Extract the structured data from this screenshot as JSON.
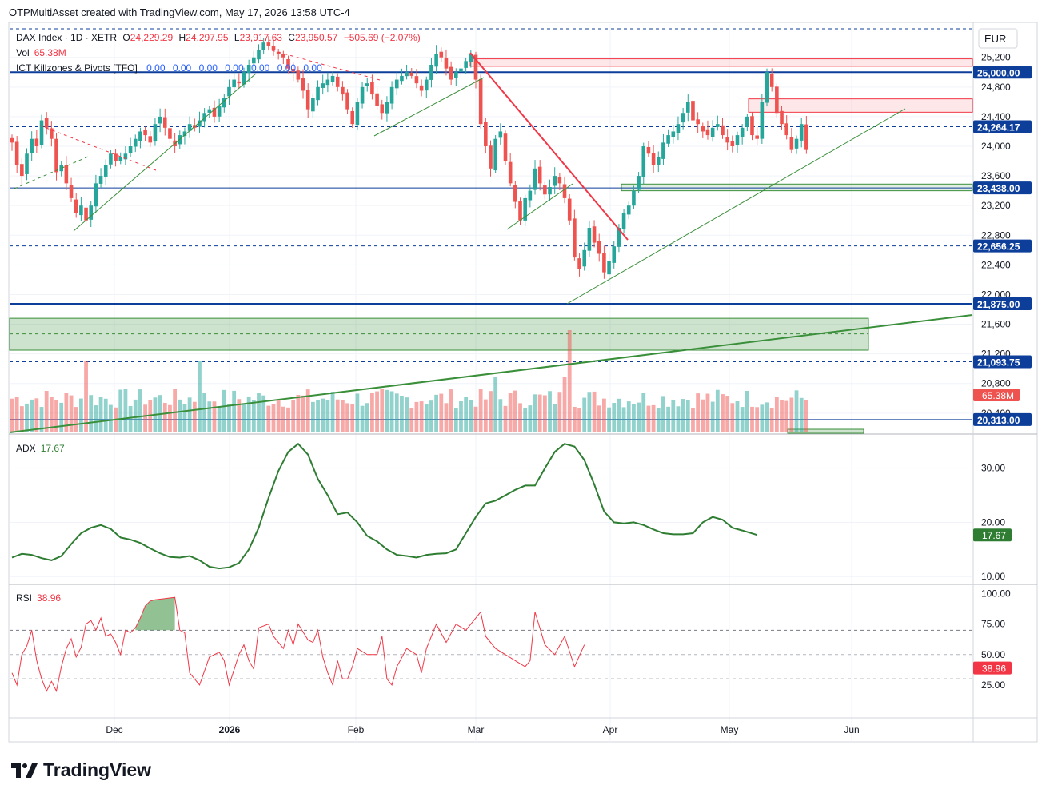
{
  "header": {
    "credit": "OTPMultiAsset created with TradingView.com, May 17, 2026 13:58 UTC-4"
  },
  "brand": {
    "name": "TradingView"
  },
  "currency": "EUR",
  "legend": {
    "symbol": "DAX Index · 1D · XETR",
    "o_label": "O",
    "o": "24,229.29",
    "h_label": "H",
    "h": "24,297.95",
    "l_label": "L",
    "l": "23,917.63",
    "c_label": "C",
    "c": "23,950.57",
    "change": "−505.69 (−2.07%)",
    "vol_label": "Vol",
    "vol": "65.38M",
    "ict_label": "ICT Killzones & Pivots [TFO]",
    "ict_values": [
      "0.00",
      "0.00",
      "0.00",
      "0.00",
      "0.00",
      "0.00",
      "0.00"
    ],
    "adx_label": "ADX",
    "adx": "17.67",
    "rsi_label": "RSI",
    "rsi": "38.96"
  },
  "colors": {
    "up": "#26a69a",
    "down": "#ef5350",
    "blue": "#0d3f9a",
    "green": "#3a8f3a",
    "adx": "#2e7d32",
    "rsi": "#f23645",
    "text": "#131722"
  },
  "chart_data": [
    {
      "type": "candlestick",
      "title": "DAX Index · 1D · XETR",
      "y_range": [
        20150,
        25650
      ],
      "y_ticks": [
        20400,
        20800,
        21200,
        21600,
        22000,
        22400,
        22800,
        23200,
        23600,
        24000,
        24400,
        24800,
        25200
      ],
      "x_ticks": [
        "Dec",
        "2026",
        "Feb",
        "Mar",
        "Apr",
        "May",
        "Jun"
      ],
      "price_labels": [
        {
          "value": 25000.0,
          "text": "25,000.00",
          "style": "blue"
        },
        {
          "value": 24264.17,
          "text": "24,264.17",
          "style": "blue"
        },
        {
          "value": 23438.0,
          "text": "23,438.00",
          "style": "blue"
        },
        {
          "value": 22656.25,
          "text": "22,656.25",
          "style": "blue"
        },
        {
          "value": 21875.0,
          "text": "21,875.00",
          "style": "blue"
        },
        {
          "value": 21093.75,
          "text": "21,093.75",
          "style": "blue"
        },
        {
          "value": 20313.0,
          "text": "20,313.00",
          "style": "blue"
        }
      ],
      "volume_label": "65.38M",
      "closes": [
        24050,
        23750,
        23600,
        23900,
        24100,
        24000,
        24350,
        24250,
        24100,
        23650,
        23750,
        23500,
        23300,
        23100,
        23200,
        23000,
        23200,
        23500,
        23600,
        23750,
        23900,
        23800,
        23850,
        23900,
        24000,
        24100,
        24200,
        24150,
        24050,
        24300,
        24400,
        24250,
        24100,
        24000,
        24150,
        24200,
        24300,
        24250,
        24350,
        24450,
        24500,
        24400,
        24550,
        24650,
        24800,
        24900,
        24850,
        25000,
        25100,
        25200,
        25300,
        25400,
        25350,
        25300,
        25250,
        25200,
        25050,
        25000,
        24900,
        24750,
        24500,
        24650,
        24800,
        24850,
        24900,
        24950,
        24800,
        24700,
        24500,
        24300,
        24600,
        24800,
        24850,
        24700,
        24550,
        24450,
        24600,
        24800,
        24900,
        24950,
        25000,
        24950,
        24850,
        24750,
        24900,
        25100,
        25250,
        25200,
        25050,
        24900,
        25000,
        25050,
        25150,
        25250,
        24900,
        24300,
        24000,
        23700,
        24100,
        24200,
        23800,
        23500,
        23250,
        23000,
        23300,
        23400,
        23700,
        23500,
        23350,
        23450,
        23600,
        23500,
        23300,
        23000,
        22500,
        22350,
        22600,
        22900,
        22700,
        22550,
        22300,
        22450,
        22650,
        22900,
        23100,
        23200,
        23400,
        23600,
        24000,
        23900,
        23750,
        23850,
        24050,
        24150,
        24200,
        24300,
        24450,
        24600,
        24350,
        24300,
        24200,
        24150,
        24250,
        24300,
        24150,
        24050,
        24000,
        24150,
        24250,
        24400,
        24150,
        24100,
        24600,
        25000,
        24800,
        24450,
        24300,
        24150,
        23950,
        24100,
        24300,
        23950
      ]
    },
    {
      "type": "line",
      "title": "ADX",
      "y_range": [
        9,
        36
      ],
      "y_ticks": [
        10,
        20,
        30
      ],
      "last": 17.67,
      "values": [
        13.5,
        14.2,
        14.0,
        13.4,
        13.0,
        13.8,
        16.0,
        18.0,
        19.0,
        19.5,
        18.8,
        17.2,
        16.8,
        16.2,
        15.2,
        14.3,
        13.6,
        13.5,
        13.8,
        13.0,
        11.8,
        11.5,
        11.7,
        12.5,
        15.0,
        19.0,
        24.5,
        29.5,
        33.0,
        34.5,
        32.5,
        28.0,
        25.0,
        21.5,
        21.8,
        20.0,
        17.5,
        16.5,
        15.0,
        14.0,
        13.8,
        13.5,
        14.0,
        14.2,
        14.3,
        15.0,
        18.0,
        21.0,
        23.5,
        24.0,
        25.0,
        26.0,
        26.8,
        26.8,
        30.0,
        33.0,
        34.5,
        34.0,
        31.5,
        27.0,
        22.0,
        20.0,
        19.8,
        20.0,
        19.5,
        18.7,
        18.0,
        17.8,
        17.8,
        18.0,
        20.0,
        21.0,
        20.5,
        19.0,
        18.5,
        17.67
      ],
      "x": [
        0,
        2,
        4,
        6,
        8,
        10,
        12,
        14,
        16,
        18,
        20,
        22,
        24,
        26,
        28,
        30,
        32,
        34,
        36,
        38,
        40,
        42,
        44,
        46,
        48,
        50,
        52,
        54,
        56,
        58,
        60,
        62,
        64,
        66,
        68,
        70,
        72,
        74,
        76,
        78,
        80,
        82,
        84,
        86,
        88,
        90,
        92,
        94,
        96,
        98,
        100,
        102,
        104,
        106,
        108,
        110,
        112,
        114,
        116,
        118,
        120,
        122,
        124,
        126,
        128,
        130,
        132,
        134,
        136,
        138,
        140,
        142,
        144,
        146,
        148,
        151
      ]
    },
    {
      "type": "line",
      "title": "RSI",
      "y_range": [
        0,
        105
      ],
      "y_ticks": [
        25,
        50,
        75,
        100
      ],
      "levels": [
        30,
        70
      ],
      "last": 38.96,
      "values": [
        35,
        25,
        50,
        57,
        70,
        45,
        30,
        20,
        28,
        20,
        40,
        55,
        63,
        48,
        56,
        75,
        78,
        70,
        80,
        65,
        67,
        60,
        50,
        70,
        68,
        72,
        80,
        90,
        94,
        95,
        96,
        97,
        70,
        68,
        35,
        25,
        48,
        50,
        52,
        45,
        25,
        50,
        58,
        45,
        38,
        72,
        75,
        65,
        60,
        55,
        70,
        58,
        75,
        62,
        60,
        70,
        48,
        35,
        25,
        45,
        30,
        30,
        40,
        55,
        50,
        50,
        65,
        30,
        25,
        40,
        55,
        50,
        35,
        55,
        75,
        60,
        75,
        70,
        85,
        65,
        55,
        50,
        45,
        40,
        45,
        85,
        58,
        50,
        65,
        40,
        58
      ],
      "x": [
        0,
        1,
        2,
        3,
        4,
        5,
        6,
        7,
        8,
        9,
        10,
        11,
        12,
        13,
        14,
        15,
        16,
        17,
        18,
        19,
        20,
        21,
        22,
        23,
        24,
        25,
        26,
        27,
        28,
        29,
        31,
        33,
        34,
        35,
        36,
        38,
        40,
        41,
        42,
        43,
        44,
        46,
        47,
        48,
        49,
        50,
        52,
        53,
        54,
        55,
        56,
        57,
        58,
        60,
        61,
        62,
        63,
        64,
        65,
        66,
        67,
        68,
        69,
        70,
        72,
        74,
        75,
        76,
        77,
        78,
        80,
        82,
        83,
        84,
        86,
        88,
        90,
        92,
        95,
        96,
        98,
        100,
        102,
        104,
        105,
        106,
        108,
        110,
        112,
        114,
        116
      ]
    }
  ]
}
